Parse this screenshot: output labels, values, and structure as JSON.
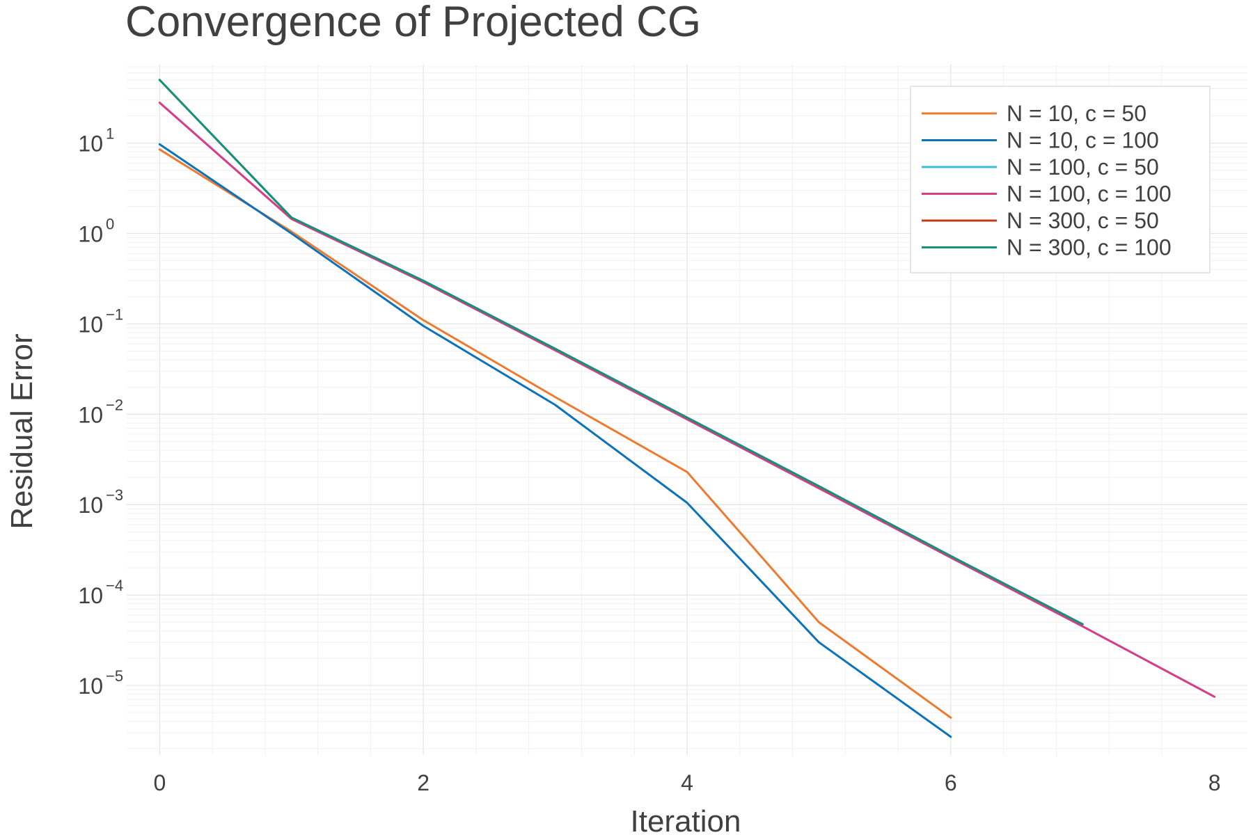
{
  "chart_data": {
    "type": "line",
    "title": "Convergence of Projected CG",
    "xlabel": "Iteration",
    "ylabel": "Residual Error",
    "y_scale": "log",
    "xlim": [
      -0.25,
      8.25
    ],
    "ylim": [
      1.7e-06,
      75
    ],
    "x_ticks": [
      "0",
      "2",
      "4",
      "6",
      "8"
    ],
    "y_ticks": [
      {
        "value": 10,
        "base": "10",
        "exp": "1"
      },
      {
        "value": 1,
        "base": "10",
        "exp": "0"
      },
      {
        "value": 0.1,
        "base": "10",
        "exp": "−1"
      },
      {
        "value": 0.01,
        "base": "10",
        "exp": "−2"
      },
      {
        "value": 0.001,
        "base": "10",
        "exp": "−3"
      },
      {
        "value": 0.0001,
        "base": "10",
        "exp": "−4"
      },
      {
        "value": 1e-05,
        "base": "10",
        "exp": "−5"
      }
    ],
    "grid": true,
    "legend_position": "top-right",
    "series": [
      {
        "name": "N = 10, c = 50",
        "color": "#ee7a2f",
        "x": [
          0,
          1,
          2,
          3,
          4,
          5,
          6
        ],
        "y": [
          8.5,
          1.05,
          0.11,
          0.0155,
          0.0023,
          5e-05,
          4.4e-06
        ]
      },
      {
        "name": "N = 10, c = 100",
        "color": "#0b72bb",
        "x": [
          0,
          1,
          2,
          3,
          4,
          5,
          6
        ],
        "y": [
          9.7,
          1.0,
          0.095,
          0.0127,
          0.00105,
          3e-05,
          2.7e-06
        ]
      },
      {
        "name": "N = 100, c = 50",
        "color": "#3fb8e0",
        "x": [
          0,
          1,
          2,
          3,
          4,
          5,
          6,
          7,
          8
        ],
        "y": [
          28,
          1.45,
          0.29,
          0.051,
          0.0088,
          0.00152,
          0.00026,
          4.5e-05,
          7.5e-06
        ]
      },
      {
        "name": "N = 100, c = 100",
        "color": "#db3c85",
        "x": [
          0,
          1,
          2,
          3,
          4,
          5,
          6,
          7,
          8
        ],
        "y": [
          28,
          1.45,
          0.29,
          0.051,
          0.0088,
          0.00152,
          0.00026,
          4.5e-05,
          7.5e-06
        ]
      },
      {
        "name": "N = 300, c = 50",
        "color": "#c8381b",
        "x": [
          0,
          1,
          2,
          3,
          4,
          5,
          6,
          7
        ],
        "y": [
          50,
          1.5,
          0.3,
          0.053,
          0.0092,
          0.0016,
          0.00027,
          4.75e-05
        ]
      },
      {
        "name": "N = 300, c = 100",
        "color": "#12927e",
        "x": [
          0,
          1,
          2,
          3,
          4,
          5,
          6,
          7
        ],
        "y": [
          50,
          1.5,
          0.3,
          0.053,
          0.0092,
          0.0016,
          0.00027,
          4.75e-05
        ]
      }
    ]
  }
}
